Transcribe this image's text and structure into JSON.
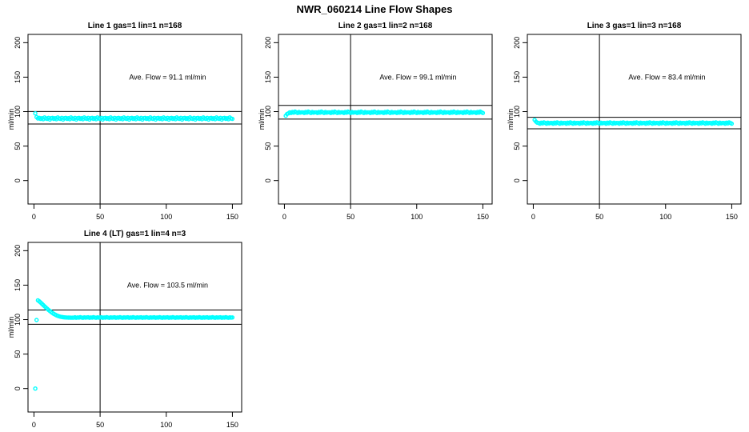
{
  "page_title": "NWR_060214  Line Flow Shapes",
  "colors": {
    "marker": "#00ffff",
    "axis": "#000000",
    "background": "#ffffff"
  },
  "chart_data": [
    {
      "type": "scatter",
      "title": "Line 1 gas=1 lin=1 n=168",
      "n": 168,
      "ave_flow": 91.1,
      "annotation": "Ave. Flow =  91.1  ml/min",
      "xlabel": "",
      "ylabel": "ml/min",
      "xlim": [
        0,
        150
      ],
      "ylim": [
        0,
        200
      ],
      "grid": false,
      "xticks": [
        0,
        50,
        100,
        150
      ],
      "yticks": [
        0,
        50,
        100,
        150,
        200
      ],
      "h_lines": [
        100.2,
        82.0
      ],
      "v_line": 50,
      "x_start": 1,
      "x_step": 1,
      "y": [
        97.5,
        92,
        90,
        91,
        89.5,
        90.5,
        89,
        91.5,
        90,
        89.5,
        91,
        88.5,
        90.5,
        91,
        89.5,
        90.5,
        89,
        91.5,
        90,
        89.5,
        91,
        88.5,
        90.5,
        91,
        89.5,
        90.5,
        89,
        91.5,
        90,
        89.5,
        91,
        88.5,
        90.5,
        91,
        89.5,
        90.5,
        89,
        91.5,
        90,
        89.5,
        91,
        88.5,
        90.5,
        91,
        89.5,
        90.5,
        89,
        91.5,
        90,
        89.5,
        91,
        88.5,
        90.5,
        91,
        89.5,
        90.5,
        89,
        91.5,
        90,
        89.5,
        91,
        88.5,
        90.5,
        91,
        89.5,
        90.5,
        89,
        91.5,
        90,
        89.5,
        91,
        88.5,
        90.5,
        91,
        89.5,
        90.5,
        89,
        91.5,
        90,
        89.5,
        91,
        88.5,
        90.5,
        91,
        89.5,
        90.5,
        89,
        91.5,
        90,
        89.5,
        91,
        88.5,
        90.5,
        91,
        89.5,
        90.5,
        89,
        91.5,
        90,
        89.5,
        91,
        88.5,
        90.5,
        91,
        89.5,
        90.5,
        89,
        91.5,
        90,
        89.5,
        91,
        88.5,
        90.5,
        91,
        89.5,
        90.5,
        89,
        91.5,
        90,
        89.5,
        91,
        88.5,
        90.5,
        91,
        89.5,
        90.5,
        89,
        91.5,
        90,
        89.5,
        91,
        88.5,
        90.5,
        91,
        89.5,
        90.5,
        89,
        91.5,
        90,
        89.5,
        91,
        88.5,
        90.5,
        91,
        89.5,
        90.5,
        89,
        91.5,
        90,
        89.5
      ]
    },
    {
      "type": "scatter",
      "title": "Line 2 gas=1 lin=2 n=168",
      "n": 168,
      "ave_flow": 99.1,
      "annotation": "Ave. Flow =  99.1  ml/min",
      "xlabel": "",
      "ylabel": "ml/min",
      "xlim": [
        0,
        150
      ],
      "ylim": [
        0,
        200
      ],
      "grid": false,
      "xticks": [
        0,
        50,
        100,
        150
      ],
      "yticks": [
        0,
        50,
        100,
        150,
        200
      ],
      "h_lines": [
        109.0,
        89.2
      ],
      "v_line": 50,
      "x_start": 1,
      "x_step": 1,
      "y": [
        94,
        96.5,
        97.5,
        99,
        98,
        99.5,
        98.5,
        100,
        99,
        98,
        99.5,
        98.5,
        99,
        99,
        98,
        99.5,
        98.5,
        100,
        99,
        98,
        99.5,
        98.5,
        99,
        99,
        98,
        99.5,
        98.5,
        100,
        99,
        98,
        99.5,
        98.5,
        99,
        99,
        98,
        99.5,
        98.5,
        100,
        99,
        98,
        99.5,
        98.5,
        99,
        99,
        98,
        99.5,
        98.5,
        100,
        99,
        98,
        99.5,
        98.5,
        99,
        99,
        98,
        99.5,
        98.5,
        100,
        99,
        98,
        99.5,
        98.5,
        99,
        99,
        98,
        99.5,
        98.5,
        100,
        99,
        98,
        99.5,
        98.5,
        99,
        99,
        98,
        99.5,
        98.5,
        100,
        99,
        98,
        99.5,
        98.5,
        99,
        99,
        98,
        99.5,
        98.5,
        100,
        99,
        98,
        99.5,
        98.5,
        99,
        99,
        98,
        99.5,
        98.5,
        100,
        99,
        98,
        99.5,
        98.5,
        99,
        99,
        98,
        99.5,
        98.5,
        100,
        99,
        98,
        99.5,
        98.5,
        99,
        99,
        98,
        99.5,
        98.5,
        100,
        99,
        98,
        99.5,
        98.5,
        99,
        99,
        98,
        99.5,
        98.5,
        100,
        99,
        98,
        99.5,
        98.5,
        99,
        99,
        98,
        99.5,
        98.5,
        100,
        99,
        98,
        99.5,
        98.5,
        99,
        99,
        98,
        99.5,
        98.5,
        100,
        99,
        98
      ]
    },
    {
      "type": "scatter",
      "title": "Line 3 gas=1 lin=3 n=168",
      "n": 168,
      "ave_flow": 83.4,
      "annotation": "Ave. Flow =  83.4  ml/min",
      "xlabel": "",
      "ylabel": "ml/min",
      "xlim": [
        0,
        150
      ],
      "ylim": [
        0,
        200
      ],
      "grid": false,
      "xticks": [
        0,
        50,
        100,
        150
      ],
      "yticks": [
        0,
        50,
        100,
        150,
        200
      ],
      "h_lines": [
        91.7,
        75.1
      ],
      "v_line": 50,
      "x_start": 1,
      "x_step": 1,
      "y": [
        88,
        85.5,
        84,
        83.5,
        82.5,
        84,
        83,
        84.5,
        83.5,
        82.5,
        84,
        83,
        83.5,
        83.5,
        82.5,
        84,
        83,
        84.5,
        83.5,
        82.5,
        84,
        83,
        83.5,
        83.5,
        82.5,
        84,
        83,
        84.5,
        83.5,
        82.5,
        84,
        83,
        83.5,
        83.5,
        82.5,
        84,
        83,
        84.5,
        83.5,
        82.5,
        84,
        83,
        83.5,
        83.5,
        82.5,
        84,
        83,
        84.5,
        83.5,
        82.5,
        84,
        83,
        83.5,
        83.5,
        82.5,
        84,
        83,
        84.5,
        83.5,
        82.5,
        84,
        83,
        83.5,
        83.5,
        82.5,
        84,
        83,
        84.5,
        83.5,
        82.5,
        84,
        83,
        83.5,
        83.5,
        82.5,
        84,
        83,
        84.5,
        83.5,
        82.5,
        84,
        83,
        83.5,
        83.5,
        82.5,
        84,
        83,
        84.5,
        83.5,
        82.5,
        84,
        83,
        83.5,
        83.5,
        82.5,
        84,
        83,
        84.5,
        83.5,
        82.5,
        84,
        83,
        83.5,
        83.5,
        82.5,
        84,
        83,
        84.5,
        83.5,
        82.5,
        84,
        83,
        83.5,
        83.5,
        82.5,
        84,
        83,
        84.5,
        83.5,
        82.5,
        84,
        83,
        83.5,
        83.5,
        82.5,
        84,
        83,
        84.5,
        83.5,
        82.5,
        84,
        83,
        83.5,
        83.5,
        82.5,
        84,
        83,
        84.5,
        83.5,
        82.5,
        84,
        83,
        83.5,
        83.5,
        82.5,
        84,
        83,
        84.5,
        83.5,
        82.5
      ]
    },
    {
      "type": "scatter",
      "title": "Line 4 (LT) gas=1 lin=4 n=3",
      "n": 3,
      "ave_flow": 103.5,
      "annotation": "Ave. Flow =  103.5  ml/min",
      "xlabel": "",
      "ylabel": "ml/min",
      "xlim": [
        0,
        150
      ],
      "ylim": [
        0,
        200
      ],
      "grid": false,
      "xticks": [
        0,
        50,
        100,
        150
      ],
      "yticks": [
        0,
        50,
        100,
        150,
        200
      ],
      "h_lines": [
        113.9,
        93.2
      ],
      "v_line": 50,
      "x_start": 1,
      "x_step": 1,
      "y": [
        0,
        99.5,
        128,
        126.5,
        124.8,
        123,
        121.2,
        119.3,
        117.5,
        115.8,
        114.1,
        112.5,
        111,
        109.6,
        108.4,
        107.3,
        106.3,
        105.5,
        104.8,
        104.2,
        103.8,
        103.5,
        103.3,
        103.1,
        103,
        102.9,
        102.9,
        102.8,
        102.8,
        102.8,
        103.4,
        102.7,
        103.2,
        102.9,
        103.5,
        103,
        102.7,
        103.3,
        102.9,
        103.2,
        103.4,
        102.7,
        103.2,
        102.9,
        103.5,
        103,
        102.7,
        103.3,
        102.9,
        103.2,
        103.4,
        102.7,
        103.2,
        102.9,
        103.5,
        103,
        102.7,
        103.3,
        102.9,
        103.2,
        103.4,
        102.7,
        103.2,
        102.9,
        103.5,
        103,
        102.7,
        103.3,
        102.9,
        103.2,
        103.4,
        102.7,
        103.2,
        102.9,
        103.5,
        103,
        102.7,
        103.3,
        102.9,
        103.2,
        103.4,
        102.7,
        103.2,
        102.9,
        103.5,
        103,
        102.7,
        103.3,
        102.9,
        103.2,
        103.4,
        102.7,
        103.2,
        102.9,
        103.5,
        103,
        102.7,
        103.3,
        102.9,
        103.2,
        103.4,
        102.7,
        103.2,
        102.9,
        103.5,
        103,
        102.7,
        103.3,
        102.9,
        103.2,
        103.4,
        102.7,
        103.2,
        102.9,
        103.5,
        103,
        102.7,
        103.3,
        102.9,
        103.2,
        103.4,
        102.7,
        103.2,
        102.9,
        103.5,
        103,
        102.7,
        103.3,
        102.9,
        103.2,
        103.4,
        102.7,
        103.2,
        102.9,
        103.5,
        103,
        102.7,
        103.3,
        102.9,
        103.2,
        103.4,
        102.7,
        103.2,
        102.9,
        103.5,
        103,
        102.7,
        103.3,
        102.9,
        103.2
      ]
    }
  ]
}
